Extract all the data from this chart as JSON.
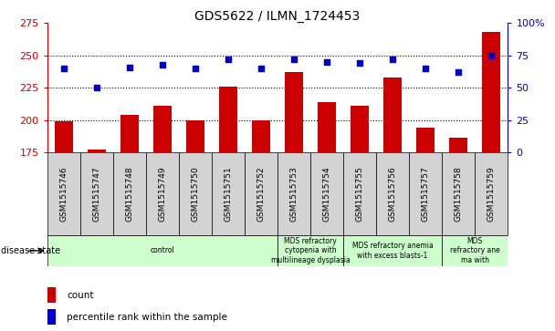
{
  "title": "GDS5622 / ILMN_1724453",
  "samples": [
    "GSM1515746",
    "GSM1515747",
    "GSM1515748",
    "GSM1515749",
    "GSM1515750",
    "GSM1515751",
    "GSM1515752",
    "GSM1515753",
    "GSM1515754",
    "GSM1515755",
    "GSM1515756",
    "GSM1515757",
    "GSM1515758",
    "GSM1515759"
  ],
  "count_values": [
    199,
    177,
    204,
    211,
    200,
    226,
    200,
    237,
    214,
    211,
    233,
    194,
    186,
    268
  ],
  "percentile_values": [
    65,
    50,
    66,
    68,
    65,
    72,
    65,
    72,
    70,
    69,
    72,
    65,
    62,
    75
  ],
  "ylim_left": [
    175,
    275
  ],
  "ylim_right": [
    0,
    100
  ],
  "yticks_left": [
    175,
    200,
    225,
    250,
    275
  ],
  "yticks_right": [
    0,
    25,
    50,
    75,
    100
  ],
  "bar_color": "#cc0000",
  "dot_color": "#0000cc",
  "grid_color": "#000000",
  "bg_color": "#ffffff",
  "gray_box_color": "#d3d3d3",
  "disease_group_color": "#ccffcc",
  "group_configs": [
    {
      "start": 0,
      "end": 7,
      "label": "control"
    },
    {
      "start": 7,
      "end": 9,
      "label": "MDS refractory\ncytopenia with\nmultilineage dysplasia"
    },
    {
      "start": 9,
      "end": 12,
      "label": "MDS refractory anemia\nwith excess blasts-1"
    },
    {
      "start": 12,
      "end": 14,
      "label": "MDS\nrefractory ane\nma with"
    }
  ],
  "disease_state_label": "disease state",
  "legend_count_label": "count",
  "legend_percentile_label": "percentile rank within the sample"
}
